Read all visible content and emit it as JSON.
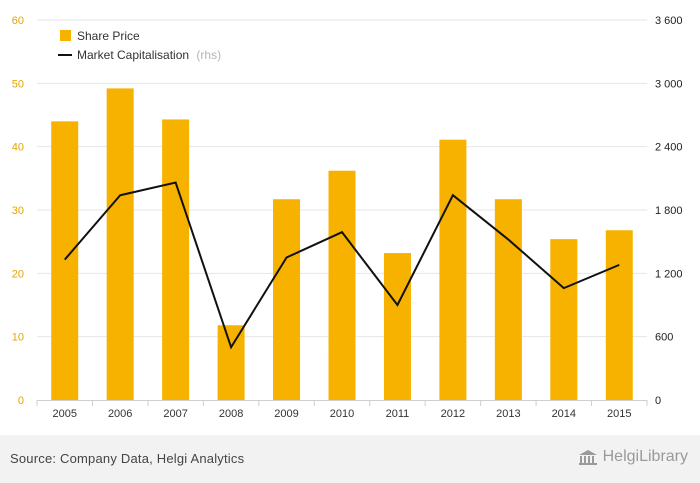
{
  "chart_data": {
    "type": "bar",
    "categories": [
      "2005",
      "2006",
      "2007",
      "2008",
      "2009",
      "2010",
      "2011",
      "2012",
      "2013",
      "2014",
      "2015"
    ],
    "series": [
      {
        "name": "Share Price",
        "type": "bar",
        "axis": "left",
        "values": [
          44.0,
          49.2,
          44.3,
          11.8,
          31.7,
          36.2,
          23.2,
          41.1,
          31.7,
          25.4,
          26.8
        ]
      },
      {
        "name": "Market Capitalisation",
        "name_suffix": "(rhs)",
        "type": "line",
        "axis": "right",
        "values": [
          1330,
          1940,
          2060,
          500,
          1350,
          1590,
          900,
          1940,
          1520,
          1060,
          1280
        ]
      }
    ],
    "y_left": {
      "min": 0,
      "max": 60,
      "ticks": [
        0,
        10,
        20,
        30,
        40,
        50,
        60
      ],
      "tick_labels": [
        "0",
        "10",
        "20",
        "30",
        "40",
        "50",
        "60"
      ]
    },
    "y_right": {
      "min": 0,
      "max": 3600,
      "ticks": [
        0,
        600,
        1200,
        1800,
        2400,
        3000,
        3600
      ],
      "tick_labels": [
        "0",
        "600",
        "1 200",
        "1 800",
        "2 400",
        "3 000",
        "3 600"
      ]
    },
    "grid": true,
    "legend": "top-left",
    "colors": {
      "bar": "#f7b200",
      "line": "#111111",
      "left_axis_text": "#e8a400",
      "grid": "#e6e6e6"
    }
  },
  "footer": {
    "source": "Source: Company Data, Helgi Analytics",
    "brand": "HelgiLibrary",
    "brand_icon": "library-building-icon"
  }
}
